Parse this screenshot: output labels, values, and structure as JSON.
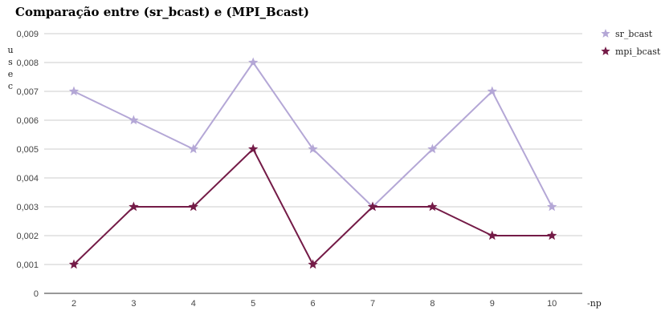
{
  "chart_data": {
    "type": "line",
    "title": "Comparação entre (sr_bcast) e (MPI_Bcast)",
    "ylabel": "usec",
    "xlabel": "-np",
    "categories": [
      "2",
      "3",
      "4",
      "5",
      "6",
      "7",
      "8",
      "9",
      "10"
    ],
    "ylim": [
      0,
      0.009
    ],
    "yticks": [
      "0",
      "0,001",
      "0,002",
      "0,003",
      "0,004",
      "0,005",
      "0,006",
      "0,007",
      "0,008",
      "0,009"
    ],
    "grid": true,
    "legend_position": "top-right",
    "series": [
      {
        "name": "sr_bcast",
        "color": "#b4a7d6",
        "marker": "star",
        "values": [
          0.007,
          0.006,
          0.005,
          0.008,
          0.005,
          0.003,
          0.005,
          0.007,
          0.003
        ]
      },
      {
        "name": "mpi_bcast",
        "color": "#741b47",
        "marker": "star",
        "values": [
          0.001,
          0.003,
          0.003,
          0.005,
          0.001,
          0.003,
          0.003,
          0.002,
          0.002
        ]
      }
    ]
  }
}
